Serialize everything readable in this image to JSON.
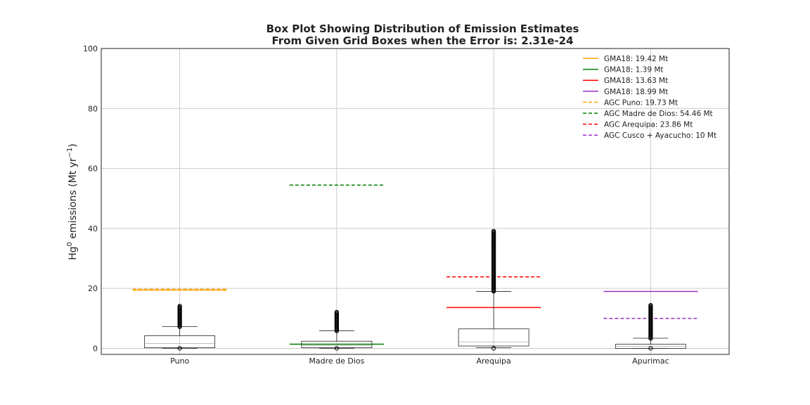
{
  "chart_data": {
    "type": "box",
    "title": "Box Plot Showing Distribution of Emission Estimates",
    "subtitle": "From Given Grid Boxes when the Error is: 2.31e-24",
    "ylabel_prefix": "Hg",
    "ylabel_sup": "0",
    "ylabel_mid": " emissions (Mt yr",
    "ylabel_sup2": "−1",
    "ylabel_end": ")",
    "ylim": [
      -2,
      100
    ],
    "yticks": [
      0,
      20,
      40,
      60,
      80,
      100
    ],
    "grid": true,
    "legend_position": "top-right",
    "categories": [
      "Puno",
      "Madre de Dios",
      "Arequipa",
      "Apurimac"
    ],
    "boxes": [
      {
        "category": "Puno",
        "q1": 0.2,
        "median": 1.6,
        "q3": 4.2,
        "whisker_low": 0,
        "whisker_high": 7.3,
        "outliers_low": [
          0
        ],
        "outliers_high_from": 7.2,
        "outliers_high_to": 14.4
      },
      {
        "category": "Madre de Dios",
        "q1": 0.2,
        "median": 1.0,
        "q3": 2.4,
        "whisker_low": 0,
        "whisker_high": 5.9,
        "outliers_low": [
          0
        ],
        "outliers_high_from": 5.8,
        "outliers_high_to": 12.4
      },
      {
        "category": "Arequipa",
        "q1": 0.8,
        "median": 2.2,
        "q3": 6.5,
        "whisker_low": 0.2,
        "whisker_high": 19.0,
        "outliers_low": [
          0
        ],
        "outliers_high_from": 19.0,
        "outliers_high_to": 39.2
      },
      {
        "category": "Apurimac",
        "q1": 0,
        "median": 0.7,
        "q3": 1.4,
        "whisker_low": 0,
        "whisker_high": 3.4,
        "outliers_low": [
          0
        ],
        "outliers_high_from": 3.3,
        "outliers_high_to": 14.6
      }
    ],
    "reference_lines": [
      {
        "label": "GMA18: 19.42 Mt",
        "value": 19.42,
        "category": 0,
        "color": "#ffa500",
        "style": "solid"
      },
      {
        "label": "GMA18: 1.39 Mt",
        "value": 1.39,
        "category": 1,
        "color": "#008000",
        "style": "solid"
      },
      {
        "label": "GMA18: 13.63 Mt",
        "value": 13.63,
        "category": 2,
        "color": "#ff0000",
        "style": "solid"
      },
      {
        "label": "GMA18: 18.99 Mt",
        "value": 18.99,
        "category": 3,
        "color": "#9932cc",
        "style": "solid"
      },
      {
        "label": "AGC Puno: 19.73 Mt",
        "value": 19.73,
        "category": 0,
        "color": "#ffa500",
        "style": "dashed"
      },
      {
        "label": "AGC Madre de Dios: 54.46 Mt",
        "value": 54.46,
        "category": 1,
        "color": "#008000",
        "style": "dashed"
      },
      {
        "label": "AGC Arequipa: 23.86 Mt",
        "value": 23.86,
        "category": 2,
        "color": "#ff0000",
        "style": "dashed"
      },
      {
        "label": "AGC Cusco + Ayacucho: 10 Mt",
        "value": 10,
        "category": 3,
        "color": "#9932cc",
        "style": "dashed"
      }
    ]
  }
}
